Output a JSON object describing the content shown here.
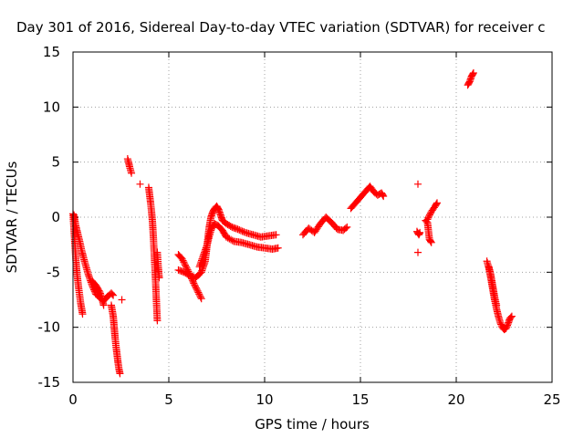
{
  "chart_data": {
    "type": "scatter",
    "title": "Day 301 of 2016, Sidereal Day-to-day VTEC variation (SDTVAR) for receiver c",
    "xlabel": "GPS time / hours",
    "ylabel": "SDTVAR / TECUs",
    "xlim": [
      0,
      25
    ],
    "ylim": [
      -15,
      15
    ],
    "xticks": [
      0,
      5,
      10,
      15,
      20,
      25
    ],
    "yticks": [
      -15,
      -10,
      -5,
      0,
      5,
      10,
      15
    ],
    "grid": true,
    "marker": "+",
    "marker_color": "#ff0000",
    "segments": [
      {
        "x": [
          0.0,
          0.05,
          0.1,
          0.15,
          0.2,
          0.3,
          0.4,
          0.5
        ],
        "y": [
          0.3,
          -1.0,
          -2.5,
          -3.8,
          -5.0,
          -6.5,
          -7.8,
          -8.8
        ]
      },
      {
        "x": [
          0.05,
          0.15,
          0.25,
          0.35,
          0.45,
          0.6,
          0.8,
          1.0,
          1.2,
          1.4,
          1.6,
          1.8,
          2.0,
          2.1
        ],
        "y": [
          0.2,
          -0.8,
          -1.5,
          -2.2,
          -3.0,
          -4.0,
          -5.2,
          -6.2,
          -7.0,
          -7.3,
          -7.6,
          -7.2,
          -6.9,
          -7.1
        ]
      },
      {
        "x": [
          1.0,
          1.2,
          1.4,
          1.5,
          1.6
        ],
        "y": [
          -5.8,
          -6.2,
          -6.8,
          -7.3,
          -8.0
        ]
      },
      {
        "x": [
          2.0,
          2.1,
          2.15,
          2.2,
          2.25,
          2.3,
          2.35,
          2.4,
          2.45
        ],
        "y": [
          -8.0,
          -9.0,
          -10.0,
          -11.0,
          -11.8,
          -12.5,
          -13.2,
          -13.8,
          -14.2
        ]
      },
      {
        "x": [
          2.55
        ],
        "y": [
          -7.5
        ]
      },
      {
        "x": [
          2.85,
          2.9,
          2.95,
          3.0,
          3.05
        ],
        "y": [
          5.3,
          5.0,
          4.6,
          4.3,
          4.0
        ]
      },
      {
        "x": [
          3.5
        ],
        "y": [
          3.0
        ]
      },
      {
        "x": [
          3.95,
          4.0,
          4.05,
          4.1,
          4.15,
          4.2,
          4.25,
          4.3,
          4.35,
          4.4
        ],
        "y": [
          2.7,
          2.0,
          1.3,
          0.5,
          -0.5,
          -2.0,
          -3.8,
          -5.5,
          -7.5,
          -9.4
        ]
      },
      {
        "x": [
          4.4,
          4.45,
          4.5
        ],
        "y": [
          -3.2,
          -4.5,
          -5.5
        ]
      },
      {
        "x": [
          5.5,
          5.7,
          5.9,
          6.1,
          6.3,
          6.5,
          6.7
        ],
        "y": [
          -3.4,
          -3.8,
          -4.5,
          -5.2,
          -6.0,
          -6.7,
          -7.4
        ]
      },
      {
        "x": [
          5.5,
          5.8,
          6.1,
          6.4,
          6.7,
          6.9,
          7.0,
          7.1,
          7.2,
          7.3,
          7.4,
          7.5,
          7.6,
          7.7,
          7.8,
          8.0,
          8.3,
          8.6,
          9.0,
          9.4,
          9.8,
          10.2,
          10.6
        ],
        "y": [
          -4.8,
          -5.0,
          -5.3,
          -5.5,
          -5.0,
          -4.0,
          -2.5,
          -1.0,
          0.0,
          0.5,
          0.8,
          1.0,
          0.7,
          0.2,
          -0.3,
          -0.6,
          -0.9,
          -1.1,
          -1.4,
          -1.6,
          -1.8,
          -1.7,
          -1.6
        ]
      },
      {
        "x": [
          6.6,
          6.8,
          7.0,
          7.1,
          7.2,
          7.3,
          7.4,
          7.6,
          7.8,
          8.0,
          8.4,
          8.8,
          9.2,
          9.6,
          10.0,
          10.4,
          10.7
        ],
        "y": [
          -4.5,
          -3.5,
          -2.5,
          -1.8,
          -1.2,
          -0.8,
          -0.6,
          -0.8,
          -1.2,
          -1.8,
          -2.2,
          -2.3,
          -2.5,
          -2.7,
          -2.8,
          -2.9,
          -2.8
        ]
      },
      {
        "x": [
          12.0,
          12.3,
          12.6,
          12.9,
          13.2,
          13.5,
          13.8,
          14.1,
          14.3
        ],
        "y": [
          -1.6,
          -1.0,
          -1.4,
          -0.6,
          0.0,
          -0.5,
          -1.1,
          -1.2,
          -0.9
        ]
      },
      {
        "x": [
          14.5,
          14.7,
          14.9,
          15.1,
          15.3,
          15.5,
          15.7,
          15.9,
          16.1,
          16.2
        ],
        "y": [
          0.8,
          1.2,
          1.6,
          2.0,
          2.4,
          2.8,
          2.3,
          2.0,
          2.2,
          1.9
        ]
      },
      {
        "x": [
          18.0
        ],
        "y": [
          3.0
        ]
      },
      {
        "x": [
          18.0
        ],
        "y": [
          -3.2
        ]
      },
      {
        "x": [
          17.95,
          18.05,
          18.1
        ],
        "y": [
          -1.3,
          -1.6,
          -1.4
        ]
      },
      {
        "x": [
          18.4,
          18.5,
          18.6,
          18.7
        ],
        "y": [
          -0.3,
          -0.5,
          -2.0,
          -2.3
        ]
      },
      {
        "x": [
          18.5,
          18.7,
          18.9,
          19.0
        ],
        "y": [
          -0.2,
          0.5,
          1.0,
          1.3
        ]
      },
      {
        "x": [
          20.6,
          20.7,
          20.8,
          20.9
        ],
        "y": [
          12.0,
          12.3,
          12.8,
          13.1
        ]
      },
      {
        "x": [
          21.6,
          21.7,
          21.8,
          21.9,
          22.0,
          22.1,
          22.2,
          22.3,
          22.4,
          22.5,
          22.6,
          22.7,
          22.8,
          22.9
        ],
        "y": [
          -4.0,
          -4.6,
          -5.5,
          -6.5,
          -7.5,
          -8.3,
          -9.0,
          -9.6,
          -10.0,
          -10.2,
          -10.1,
          -9.7,
          -9.2,
          -9.0
        ]
      },
      {
        "x": [
          21.7,
          21.8,
          21.9,
          22.0,
          22.1
        ],
        "y": [
          -4.5,
          -5.2,
          -6.2,
          -7.2,
          -8.0
        ]
      }
    ]
  }
}
